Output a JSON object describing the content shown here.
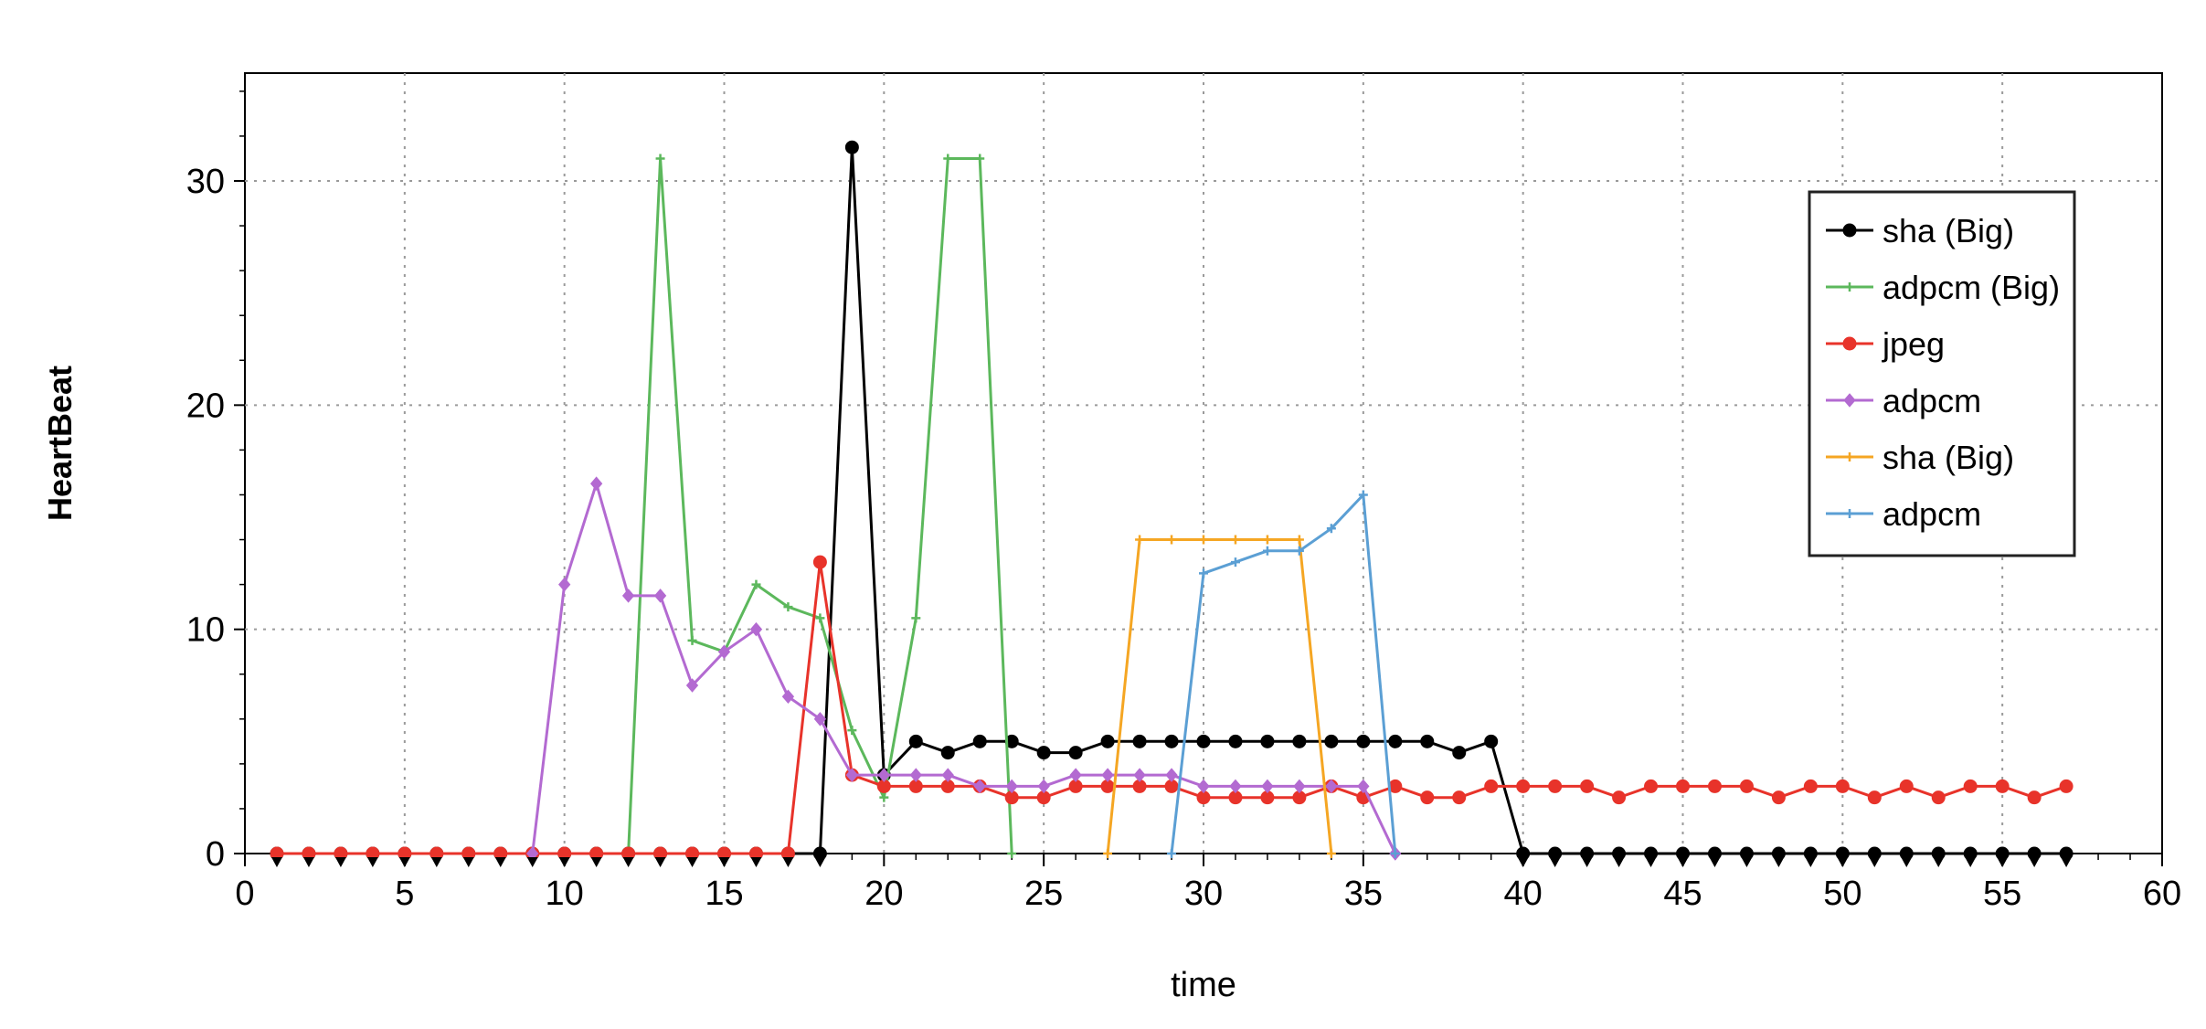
{
  "chart_data": {
    "type": "line",
    "xlabel": "time",
    "ylabel": "HeartBeat",
    "xlim": [
      0,
      60
    ],
    "ylim": [
      0,
      35
    ],
    "xticks": [
      0,
      5,
      10,
      15,
      20,
      25,
      30,
      35,
      40,
      45,
      50,
      55,
      60
    ],
    "yticks": [
      0,
      10,
      20,
      30
    ],
    "grid": true,
    "legend_position": "top-right",
    "series": [
      {
        "name": "sha (Big)",
        "color": "#000000",
        "marker": "circle",
        "x": [
          1,
          2,
          3,
          4,
          5,
          6,
          7,
          8,
          9,
          10,
          11,
          12,
          13,
          14,
          15,
          16,
          17,
          18,
          19,
          20,
          21,
          22,
          23,
          24,
          25,
          26,
          27,
          28,
          29,
          30,
          31,
          32,
          33,
          34,
          35,
          36,
          37,
          38,
          39,
          40,
          41,
          42,
          43,
          44,
          45,
          46,
          47,
          48,
          49,
          50,
          51,
          52,
          53,
          54,
          55,
          56,
          57
        ],
        "y": [
          0,
          0,
          0,
          0,
          0,
          0,
          0,
          0,
          0,
          0,
          0,
          0,
          0,
          0,
          0,
          0,
          0,
          0,
          31.5,
          3.5,
          5,
          4.5,
          5,
          5,
          4.5,
          4.5,
          5,
          5,
          5,
          5,
          5,
          5,
          5,
          5,
          5,
          5,
          5,
          4.5,
          5,
          0,
          0,
          0,
          0,
          0,
          0,
          0,
          0,
          0,
          0,
          0,
          0,
          0,
          0,
          0,
          0,
          0,
          0
        ]
      },
      {
        "name": "adpcm (Big)",
        "color": "#5cb85c",
        "marker": "plus",
        "x": [
          12,
          13,
          14,
          15,
          16,
          17,
          18,
          19,
          20,
          21,
          22,
          23,
          24
        ],
        "y": [
          0,
          31,
          9.5,
          9,
          12,
          11,
          10.5,
          5.5,
          2.5,
          10.5,
          31,
          31,
          0
        ]
      },
      {
        "name": "jpeg",
        "color": "#e8332a",
        "marker": "circle",
        "x": [
          1,
          2,
          3,
          4,
          5,
          6,
          7,
          8,
          9,
          10,
          11,
          12,
          13,
          14,
          15,
          16,
          17,
          18,
          19,
          20,
          21,
          22,
          23,
          24,
          25,
          26,
          27,
          28,
          29,
          30,
          31,
          32,
          33,
          34,
          35,
          36,
          37,
          38,
          39,
          40,
          41,
          42,
          43,
          44,
          45,
          46,
          47,
          48,
          49,
          50,
          51,
          52,
          53,
          54,
          55,
          56,
          57
        ],
        "y": [
          0,
          0,
          0,
          0,
          0,
          0,
          0,
          0,
          0,
          0,
          0,
          0,
          0,
          0,
          0,
          0,
          0,
          13,
          3.5,
          3,
          3,
          3,
          3,
          2.5,
          2.5,
          3,
          3,
          3,
          3,
          2.5,
          2.5,
          2.5,
          2.5,
          3,
          2.5,
          3,
          2.5,
          2.5,
          3,
          3,
          3,
          3,
          2.5,
          3,
          3,
          3,
          3,
          2.5,
          3,
          3,
          2.5,
          3,
          2.5,
          3,
          3,
          2.5,
          3
        ]
      },
      {
        "name": "adpcm",
        "color": "#b36ad1",
        "marker": "diamond",
        "x": [
          9,
          10,
          11,
          12,
          13,
          14,
          15,
          16,
          17,
          18,
          19,
          20,
          21,
          22,
          23,
          24,
          25,
          26,
          27,
          28,
          29,
          30,
          31,
          32,
          33,
          34,
          35,
          36
        ],
        "y": [
          0,
          12,
          16.5,
          11.5,
          11.5,
          7.5,
          9,
          10,
          7,
          6,
          3.5,
          3.5,
          3.5,
          3.5,
          3,
          3,
          3,
          3.5,
          3.5,
          3.5,
          3.5,
          3,
          3,
          3,
          3,
          3,
          3,
          0
        ]
      },
      {
        "name": "sha (Big)",
        "color": "#f5a623",
        "marker": "plus",
        "x": [
          27,
          28,
          29,
          30,
          31,
          32,
          33,
          34
        ],
        "y": [
          0,
          14,
          14,
          14,
          14,
          14,
          14,
          0
        ]
      },
      {
        "name": "adpcm",
        "color": "#5b9fd4",
        "marker": "plus",
        "x": [
          29,
          30,
          31,
          32,
          33,
          34,
          35,
          36
        ],
        "y": [
          0,
          12.5,
          13,
          13.5,
          13.5,
          14.5,
          16,
          0
        ]
      }
    ]
  }
}
